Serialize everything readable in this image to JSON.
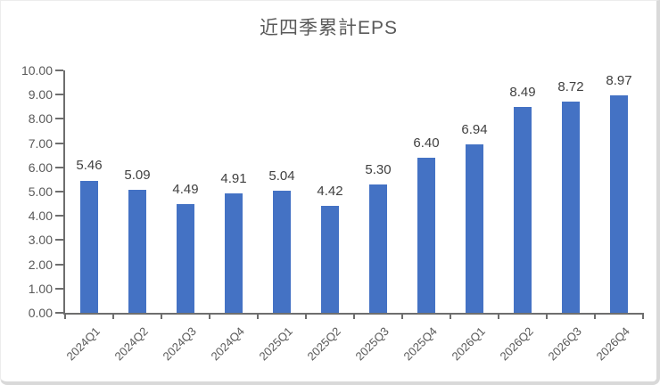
{
  "chart_data": {
    "type": "bar",
    "title": "近四季累計EPS",
    "categories": [
      "2024Q1",
      "2024Q2",
      "2024Q3",
      "2024Q4",
      "2025Q1",
      "2025Q2",
      "2025Q3",
      "2025Q4",
      "2026Q1",
      "2026Q2",
      "2026Q3",
      "2026Q4"
    ],
    "values": [
      5.46,
      5.09,
      4.49,
      4.91,
      5.04,
      4.42,
      5.3,
      6.4,
      6.94,
      8.49,
      8.72,
      8.97
    ],
    "value_labels": [
      "5.46",
      "5.09",
      "4.49",
      "4.91",
      "5.04",
      "4.42",
      "5.30",
      "6.40",
      "6.94",
      "8.49",
      "8.72",
      "8.97"
    ],
    "xlabel": "",
    "ylabel": "",
    "ylim": [
      0,
      10
    ],
    "ytick_labels": [
      "0.00",
      "1.00",
      "2.00",
      "3.00",
      "4.00",
      "5.00",
      "6.00",
      "7.00",
      "8.00",
      "9.00",
      "10.00"
    ],
    "grid": "off",
    "legend": "none",
    "colors": {
      "bar": "#4472C4",
      "title": "#595959",
      "axis_text": "#595959",
      "value_text": "#404040",
      "axis_line": "#6e6e6e"
    }
  }
}
